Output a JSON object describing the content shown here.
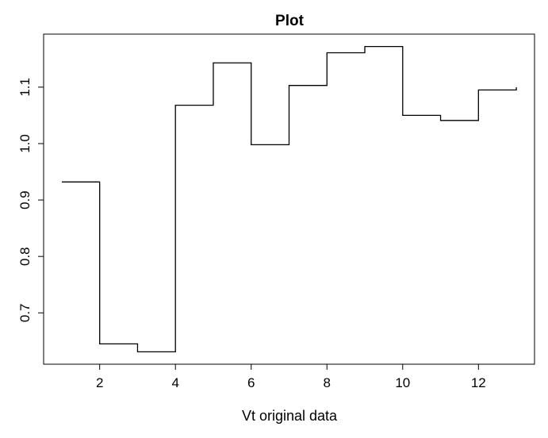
{
  "chart_data": {
    "type": "line",
    "style": "step",
    "title": "Plot",
    "xlabel": "Vt original data",
    "ylabel": "",
    "x": [
      1,
      2,
      3,
      4,
      5,
      6,
      7,
      8,
      9,
      10,
      11,
      12,
      13
    ],
    "y": [
      0.932,
      0.645,
      0.631,
      1.068,
      1.143,
      0.998,
      1.103,
      1.161,
      1.172,
      1.05,
      1.041,
      1.095,
      1.1
    ],
    "xlim": [
      0.52,
      13.48
    ],
    "ylim": [
      0.609,
      1.194
    ],
    "xticks": [
      2,
      4,
      6,
      8,
      10,
      12
    ],
    "yticks": [
      0.7,
      0.8,
      0.9,
      1.0,
      1.1
    ],
    "xtick_labels": [
      "2",
      "4",
      "6",
      "8",
      "10",
      "12"
    ],
    "ytick_labels": [
      "0.7",
      "0.8",
      "0.9",
      "1.0",
      "1.1"
    ],
    "line_color": "#000000",
    "grid": false
  }
}
